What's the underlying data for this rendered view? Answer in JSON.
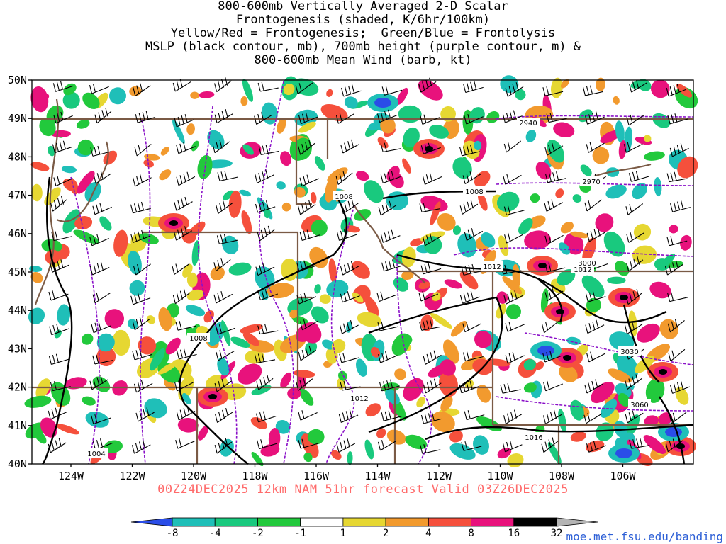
{
  "title_lines": [
    "800-600mb Vertically Averaged 2-D Scalar",
    "Frontogenesis (shaded, K/6hr/100km)",
    "Yellow/Red = Frontogenesis;  Green/Blue = Frontolysis",
    "MSLP (black contour, mb), 700mb height (purple contour, m) &",
    "800-600mb Mean Wind (barb, kt)"
  ],
  "footer": "00Z24DEC2025 12km NAM 51hr forecast Valid 03Z26DEC2025",
  "credit": "moe.met.fsu.edu/banding",
  "lat_labels": [
    "50N",
    "49N",
    "48N",
    "47N",
    "46N",
    "45N",
    "44N",
    "43N",
    "42N",
    "41N",
    "40N"
  ],
  "lon_labels": [
    "124W",
    "122W",
    "120W",
    "118W",
    "116W",
    "114W",
    "112W",
    "110W",
    "108W",
    "106W"
  ],
  "colorbar": {
    "labels": [
      "-8",
      "-4",
      "-2",
      "-1",
      "1",
      "2",
      "4",
      "8",
      "16",
      "32"
    ],
    "colors": [
      "#2a4de8",
      "#1fbfb8",
      "#19c97e",
      "#22c93c",
      "#ffffff",
      "#e6d732",
      "#f29a2e",
      "#f5503c",
      "#e8127c",
      "#000000",
      "#b4b4b4"
    ]
  },
  "mslp_labels": [
    "1008",
    "1008",
    "1012",
    "1012",
    "1012",
    "1016",
    "1004",
    "1008"
  ],
  "height_labels": [
    "2940",
    "2970",
    "3000",
    "3030",
    "3060"
  ]
}
